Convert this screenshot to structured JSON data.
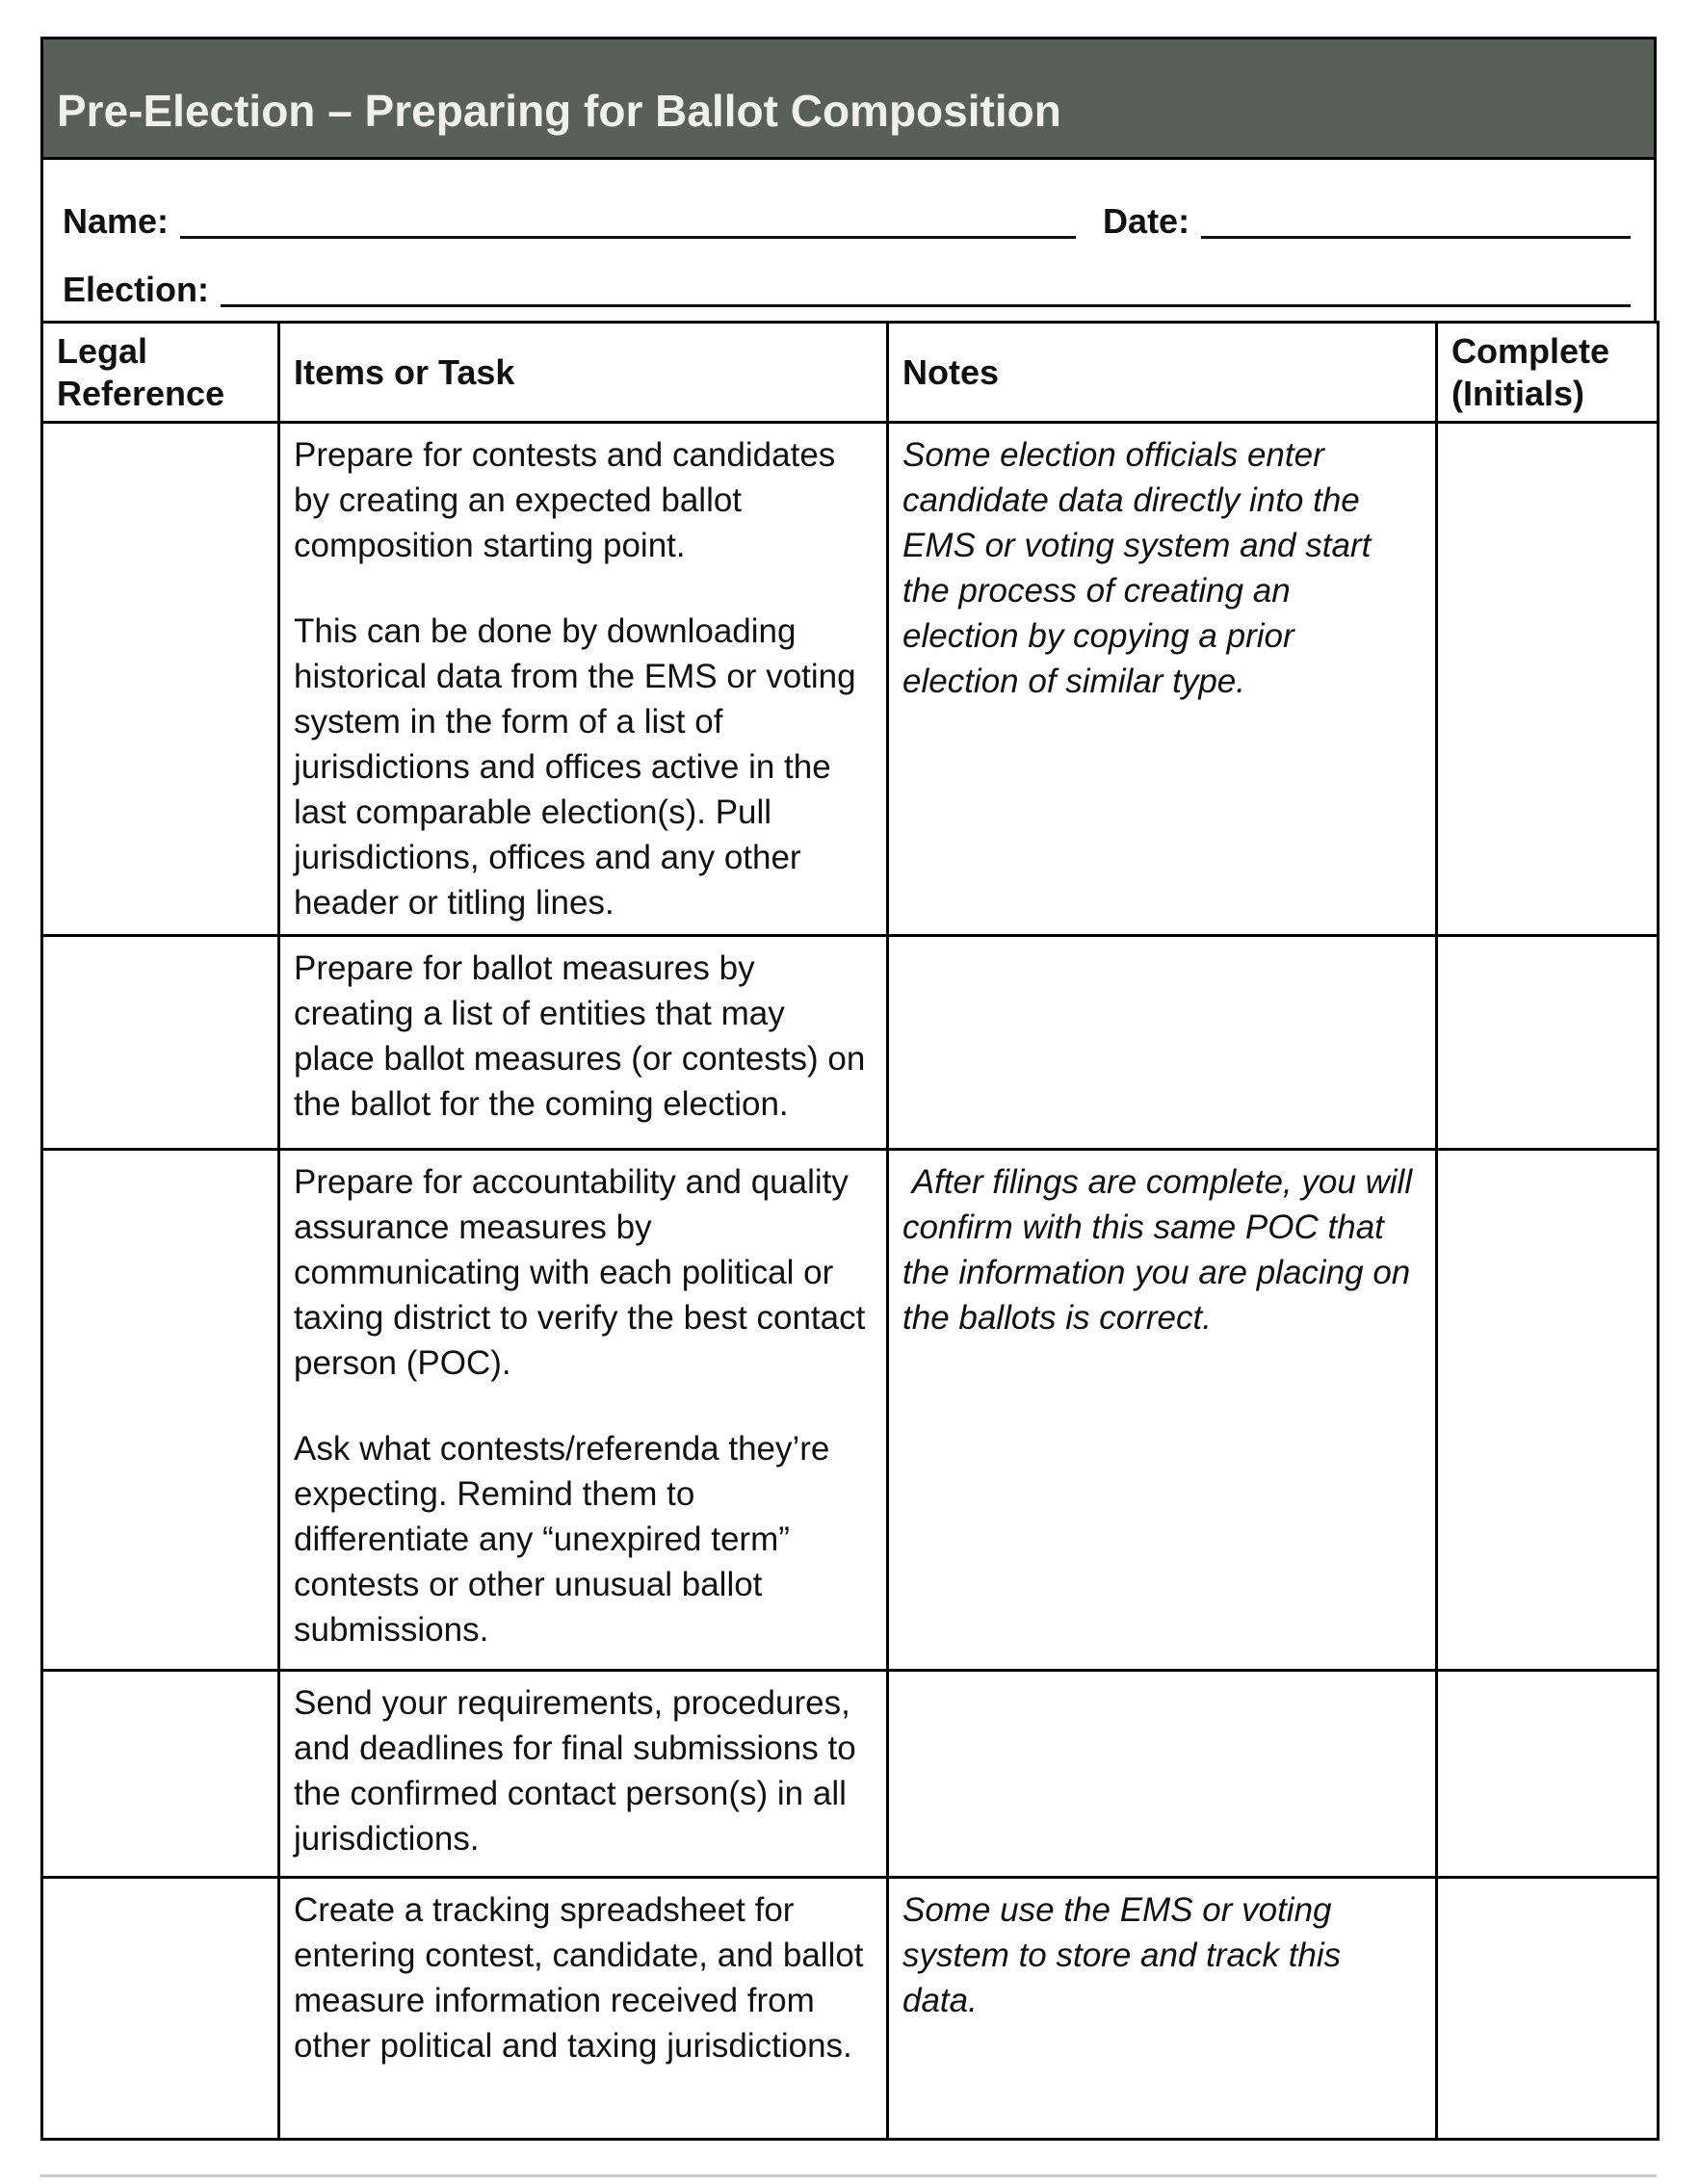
{
  "title": "Pre-Election – Preparing for Ballot Composition",
  "form": {
    "name_label": "Name:",
    "date_label": "Date:",
    "election_label": "Election:"
  },
  "table": {
    "headers": [
      "Legal Reference",
      "Items or Task",
      "Notes",
      "Complete (Initials)"
    ],
    "rows": [
      {
        "legal_reference": "",
        "task_paragraphs": [
          "Prepare for contests and candidates by creating an expected ballot composition starting point.",
          "This can be done by downloading historical data from the EMS or voting system in the form of a list of jurisdictions and offices active in the last comparable election(s). Pull jurisdictions, offices and any other header or titling lines."
        ],
        "notes_paragraphs": [
          "Some election officials enter candidate data directly into the EMS or voting system and start the process of creating an election by copying a prior election of similar type."
        ],
        "complete": ""
      },
      {
        "legal_reference": "",
        "task_paragraphs": [
          "Prepare for ballot measures by creating a list of entities that may place ballot measures (or contests) on the ballot for the coming election."
        ],
        "notes_paragraphs": [],
        "complete": ""
      },
      {
        "legal_reference": "",
        "task_paragraphs": [
          "Prepare for accountability and quality assurance measures by communicating with each political or taxing district to verify the best contact person (POC).",
          "Ask what contests/referenda they’re expecting. Remind them to differentiate any “unexpired term” contests or other unusual ballot submissions."
        ],
        "notes_paragraphs": [
          " After filings are complete, you will confirm with this same POC that the information you are placing on the ballots is correct."
        ],
        "complete": ""
      },
      {
        "legal_reference": "",
        "task_paragraphs": [
          "Send your requirements, procedures, and deadlines for final submissions to the confirmed contact person(s) in all jurisdictions."
        ],
        "notes_paragraphs": [],
        "complete": ""
      },
      {
        "legal_reference": "",
        "task_paragraphs": [
          "Create a tracking spreadsheet for entering contest, candidate, and ballot measure information received from other political and taxing jurisdictions."
        ],
        "notes_paragraphs": [
          "Some use the EMS or voting system to store and track this data."
        ],
        "complete": ""
      }
    ]
  },
  "colors": {
    "header_bg": "#596055",
    "header_text": "#f1efe9",
    "border": "#000000",
    "text": "#111111",
    "cutoff": "#c9c9c6"
  }
}
